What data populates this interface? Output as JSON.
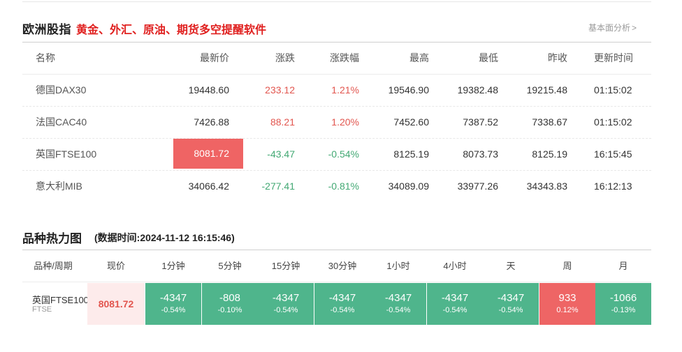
{
  "section1": {
    "title": "欧洲股指",
    "promo": "黄金、外汇、原油、期货多空提醒软件",
    "link": "基本面分析",
    "link_icon": "chevron-right-icon"
  },
  "index_table": {
    "headers": {
      "name": "名称",
      "price": "最新价",
      "change": "涨跌",
      "pct": "涨跌幅",
      "high": "最高",
      "low": "最低",
      "prev": "昨收",
      "time": "更新时间"
    },
    "rows": [
      {
        "name": "德国DAX30",
        "price": "19448.60",
        "change": "233.12",
        "pct": "1.21%",
        "high": "19546.90",
        "low": "19382.48",
        "prev": "19215.48",
        "time": "01:15:02"
      },
      {
        "name": "法国CAC40",
        "price": "7426.88",
        "change": "88.21",
        "pct": "1.20%",
        "high": "7452.60",
        "low": "7387.52",
        "prev": "7338.67",
        "time": "01:15:02"
      },
      {
        "name": "英国FTSE100",
        "price": "8081.72",
        "change": "-43.47",
        "pct": "-0.54%",
        "high": "8125.19",
        "low": "8073.73",
        "prev": "8125.19",
        "time": "16:15:45"
      },
      {
        "name": "意大利MIB",
        "price": "34066.42",
        "change": "-277.41",
        "pct": "-0.81%",
        "high": "34089.09",
        "low": "33977.26",
        "prev": "34343.83",
        "time": "16:12:13"
      }
    ]
  },
  "colors": {
    "up": "#e2564f",
    "down": "#42a873",
    "flash": "#ef6464",
    "heat_green": "#4fb58c",
    "heat_red": "#ee6565"
  },
  "section2": {
    "title": "品种热力图",
    "timestamp": "(数据时间:2024-11-12 16:15:46)"
  },
  "heatmap": {
    "headers": {
      "product": "品种/周期",
      "price": "现价",
      "p1": "1分钟",
      "p2": "5分钟",
      "p3": "15分钟",
      "p4": "30分钟",
      "p5": "1小时",
      "p6": "4小时",
      "p7": "天",
      "p8": "周",
      "p9": "月"
    },
    "row": {
      "name": "英国FTSE100",
      "code": "FTSE",
      "price": "8081.72",
      "cells": [
        {
          "value": "-4347",
          "pct": "-0.54%"
        },
        {
          "value": "-808",
          "pct": "-0.10%"
        },
        {
          "value": "-4347",
          "pct": "-0.54%"
        },
        {
          "value": "-4347",
          "pct": "-0.54%"
        },
        {
          "value": "-4347",
          "pct": "-0.54%"
        },
        {
          "value": "-4347",
          "pct": "-0.54%"
        },
        {
          "value": "-4347",
          "pct": "-0.54%"
        },
        {
          "value": "933",
          "pct": "0.12%"
        },
        {
          "value": "-1066",
          "pct": "-0.13%"
        }
      ]
    }
  }
}
